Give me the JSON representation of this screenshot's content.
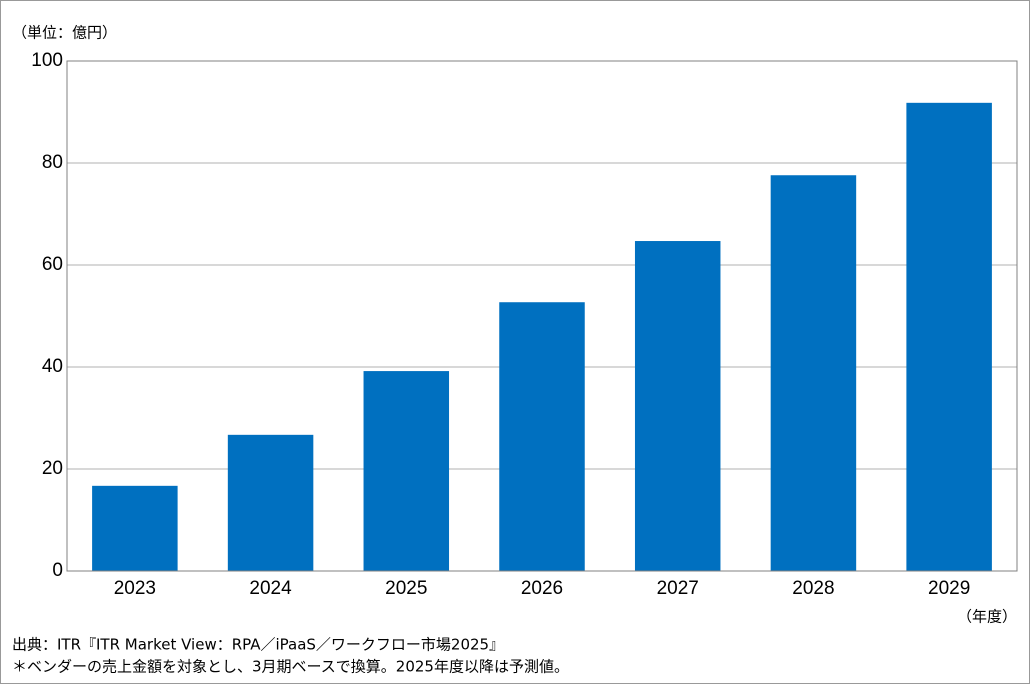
{
  "chart_data": {
    "type": "bar",
    "y_unit": "（単位：億円）",
    "x_unit": "（年度）",
    "categories": [
      "2023",
      "2024",
      "2025",
      "2026",
      "2027",
      "2028",
      "2029"
    ],
    "values": [
      16.7,
      26.7,
      39.2,
      52.7,
      64.7,
      77.6,
      91.8
    ],
    "color": "#0070c0",
    "ylim": [
      0,
      100
    ],
    "yticks": [
      0,
      20,
      40,
      60,
      80,
      100
    ],
    "grid": true,
    "source": "出典：ITR『ITR Market View：RPA／iPaaS／ワークフロー市場2025』",
    "note": "＊ベンダーの売上金額を対象とし、3月期ベースで換算。2025年度以降は予測値。"
  }
}
